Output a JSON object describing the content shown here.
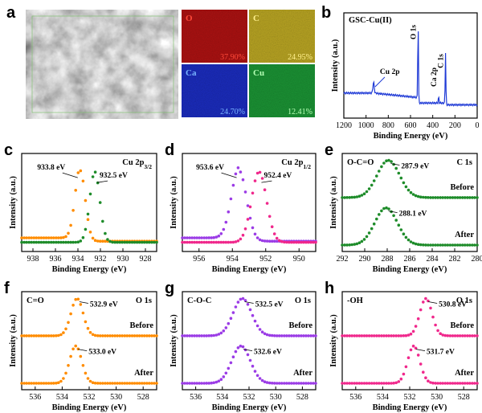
{
  "colors": {
    "axis": "#000000",
    "blue": "#1f3ad6",
    "orange": "#ff8c00",
    "green": "#1e8c2a",
    "magenta": "#f0288c",
    "purple": "#9b3ce6",
    "map_O": "#c81414",
    "map_C": "#d7c028",
    "map_Ca": "#1e32dc",
    "map_Cu": "#1eaa3c"
  },
  "panels": {
    "a": {
      "label": "a",
      "maps": [
        {
          "element": "O",
          "percent": "37.90%",
          "color": "#c81414",
          "text_color": "#ff4a3a"
        },
        {
          "element": "C",
          "percent": "24.95%",
          "color": "#d7c028",
          "text_color": "#fff08c"
        },
        {
          "element": "Ca",
          "percent": "24.70%",
          "color": "#1e32dc",
          "text_color": "#78b4ff"
        },
        {
          "element": "Cu",
          "percent": "12.41%",
          "color": "#1eaa3c",
          "text_color": "#b4ffb4"
        }
      ]
    }
  },
  "chart_data": [
    {
      "panel": "b",
      "type": "line",
      "title": "GSC-Cu(II)",
      "xlabel": "Binding Energy (eV)",
      "ylabel": "Intensity (a.u.)",
      "xlim": [
        1200,
        0
      ],
      "xticks": [
        1200,
        1000,
        800,
        600,
        400,
        200,
        0
      ],
      "series": [
        {
          "color": "#1f3ad6",
          "peaks": [
            [
              932.5,
              0.12
            ],
            [
              531.5,
              0.9
            ],
            [
              347,
              0.07
            ],
            [
              285,
              0.56
            ]
          ]
        }
      ],
      "annotations": [
        {
          "text": "O 1s",
          "x": 531,
          "vertical": true
        },
        {
          "text": "Cu 2p",
          "x": 933,
          "vertical": false
        },
        {
          "text": "Ca 2p",
          "x": 347,
          "vertical": true
        },
        {
          "text": "C 1s",
          "x": 285,
          "vertical": true
        }
      ]
    },
    {
      "panel": "c",
      "type": "scatter",
      "title": "Cu 2p3/2",
      "xlabel": "Binding Energy (eV)",
      "ylabel": "Intensity (a.u.)",
      "xlim": [
        939,
        927
      ],
      "xticks": [
        938,
        936,
        934,
        932,
        930,
        928
      ],
      "series": [
        {
          "color": "#ff8c00",
          "peak": 933.8,
          "label": "933.8 eV"
        },
        {
          "color": "#1e8c2a",
          "peak": 932.5,
          "label": "932.5 eV"
        }
      ]
    },
    {
      "panel": "d",
      "type": "scatter",
      "title": "Cu 2p1/2",
      "xlabel": "Binding Energy (eV)",
      "ylabel": "Intensity (a.u.)",
      "xlim": [
        957,
        949
      ],
      "xticks": [
        956,
        954,
        952,
        950
      ],
      "series": [
        {
          "color": "#9b3ce6",
          "peak": 953.6,
          "label": "953.6 eV"
        },
        {
          "color": "#f0288c",
          "peak": 952.4,
          "label": "952.4 eV"
        }
      ]
    },
    {
      "panel": "e",
      "type": "scatter",
      "title": "C 1s",
      "group": "O-C=O",
      "xlabel": "Binding Energy (eV)",
      "ylabel": "Intensity (a.u.)",
      "xlim": [
        292,
        280
      ],
      "xticks": [
        292,
        290,
        288,
        286,
        284,
        282,
        280
      ],
      "series": [
        {
          "name": "Before",
          "color": "#1e8c2a",
          "peak": 287.9,
          "label": "287.9 eV"
        },
        {
          "name": "After",
          "color": "#1e8c2a",
          "peak": 288.1,
          "label": "288.1 eV"
        }
      ]
    },
    {
      "panel": "f",
      "type": "scatter",
      "title": "O 1s",
      "group": "C=O",
      "xlabel": "Binding Energy (eV)",
      "ylabel": "Intensity (a.u.)",
      "xlim": [
        537,
        527
      ],
      "xticks": [
        536,
        534,
        532,
        530,
        528
      ],
      "series": [
        {
          "name": "Before",
          "color": "#ff8c00",
          "peak": 532.9,
          "label": "532.9 eV"
        },
        {
          "name": "After",
          "color": "#ff8c00",
          "peak": 533.0,
          "label": "533.0 eV"
        }
      ]
    },
    {
      "panel": "g",
      "type": "scatter",
      "title": "O 1s",
      "group": "C-O-C",
      "xlabel": "Binding Energy (eV)",
      "ylabel": "Intensity (a.u.)",
      "xlim": [
        537,
        527
      ],
      "xticks": [
        536,
        534,
        532,
        530,
        528
      ],
      "series": [
        {
          "name": "Before",
          "color": "#9b3ce6",
          "peak": 532.5,
          "label": "532.5 eV"
        },
        {
          "name": "After",
          "color": "#9b3ce6",
          "peak": 532.6,
          "label": "532.6 eV"
        }
      ]
    },
    {
      "panel": "h",
      "type": "scatter",
      "title": "O 1s",
      "group": "-OH",
      "xlabel": "Binding Energy (eV)",
      "ylabel": "Intensity (a.u.)",
      "xlim": [
        537,
        527
      ],
      "xticks": [
        536,
        534,
        532,
        530,
        528
      ],
      "series": [
        {
          "name": "Before",
          "color": "#f0288c",
          "peak": 530.8,
          "label": "530.8 eV"
        },
        {
          "name": "After",
          "color": "#f0288c",
          "peak": 531.7,
          "label": "531.7 eV"
        }
      ]
    }
  ]
}
